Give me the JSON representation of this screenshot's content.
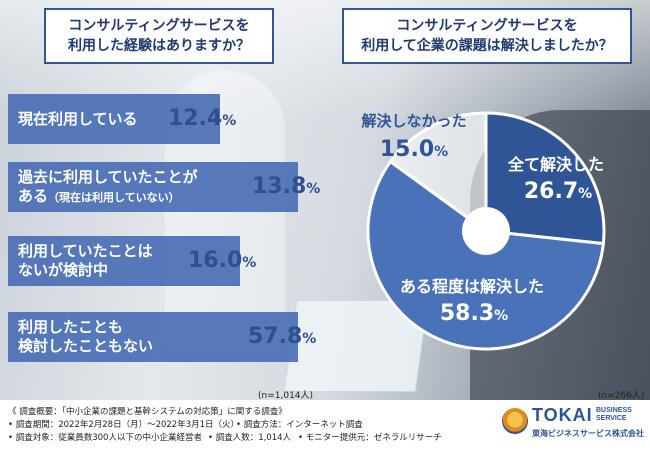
{
  "left_question": {
    "line1": "コンサルティングサービスを",
    "line2": "利用した経験はありますか？"
  },
  "right_question": {
    "line1": "コンサルティングサービスを",
    "line2": "利用して企業の課題は解決しましたか？"
  },
  "left_n": "(n=1,014人)",
  "right_n": "(n=266人)",
  "bars": [
    {
      "line1": "現在利用している",
      "line2": "",
      "sub": "",
      "value": "12.4",
      "unit": "%"
    },
    {
      "line1": "過去に利用していたことが",
      "line2": "ある",
      "sub": "（現在は利用していない）",
      "value": "13.8",
      "unit": "%"
    },
    {
      "line1": "利用していたことは",
      "line2": "ないが検討中",
      "sub": "",
      "value": "16.0",
      "unit": "%"
    },
    {
      "line1": "利用したことも",
      "line2": "検討したこともない",
      "sub": "",
      "value": "57.8",
      "unit": "%"
    }
  ],
  "pie": {
    "slices": [
      {
        "label": "全て解決した",
        "value": "26.7",
        "unit": "%",
        "color": "#2f5597"
      },
      {
        "label": "ある程度は解決した",
        "value": "58.3",
        "unit": "%",
        "color": "#4a72b8"
      },
      {
        "label": "解決しなかった",
        "value": "15.0",
        "unit": "%",
        "color": "#ffffff"
      }
    ]
  },
  "footer": {
    "l1": "《 調査概要：「中小企業の課題と基幹システムの対応策」に関する調査》",
    "l2a": "• 調査期間：2022年2月28日（月）～2022年3月1日（火）",
    "l2b": "• 調査方法：インターネット調査",
    "l3a": "• 調査対象：従業員数300人以下の中小企業経営者",
    "l3b": "• 調査人数：1,014人",
    "l3c": "• モニター提供元：ゼネラルリサーチ"
  },
  "logo": {
    "name": "TOKAI",
    "tag1": "BUSINESS",
    "tag2": "SERVICE",
    "company": "東海ビジネスサービス株式会社"
  },
  "chart_data": [
    {
      "type": "bar",
      "title": "コンサルティングサービスを利用した経験はありますか？",
      "categories": [
        "現在利用している",
        "過去に利用していたことがある（現在は利用していない）",
        "利用していたことはないが検討中",
        "利用したことも検討したこともない"
      ],
      "values": [
        12.4,
        13.8,
        16.0,
        57.8
      ],
      "unit": "%",
      "n": "n=1,014人"
    },
    {
      "type": "pie",
      "title": "コンサルティングサービスを利用して企業の課題は解決しましたか？",
      "categories": [
        "全て解決した",
        "ある程度は解決した",
        "解決しなかった"
      ],
      "values": [
        26.7,
        58.3,
        15.0
      ],
      "unit": "%",
      "n": "n=266人"
    }
  ]
}
